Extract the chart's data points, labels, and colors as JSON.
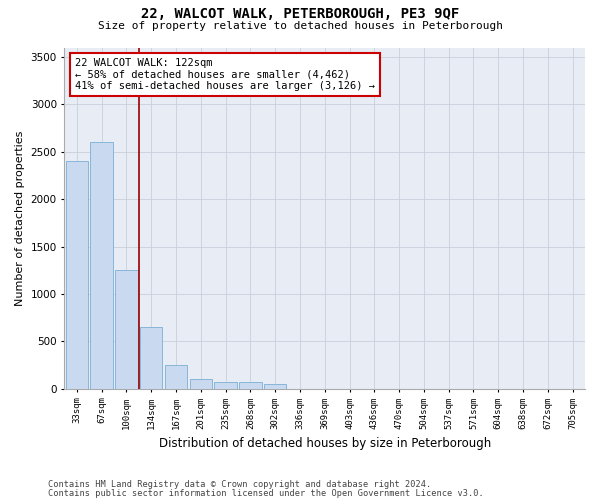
{
  "title1": "22, WALCOT WALK, PETERBOROUGH, PE3 9QF",
  "title2": "Size of property relative to detached houses in Peterborough",
  "xlabel": "Distribution of detached houses by size in Peterborough",
  "ylabel": "Number of detached properties",
  "categories": [
    "33sqm",
    "67sqm",
    "100sqm",
    "134sqm",
    "167sqm",
    "201sqm",
    "235sqm",
    "268sqm",
    "302sqm",
    "336sqm",
    "369sqm",
    "403sqm",
    "436sqm",
    "470sqm",
    "504sqm",
    "537sqm",
    "571sqm",
    "604sqm",
    "638sqm",
    "672sqm",
    "705sqm"
  ],
  "values": [
    2400,
    2600,
    1250,
    650,
    250,
    100,
    75,
    75,
    50,
    0,
    0,
    0,
    0,
    0,
    0,
    0,
    0,
    0,
    0,
    0,
    0
  ],
  "bar_color": "#c8d9f0",
  "bar_edge_color": "#7bafd4",
  "vline_x": 2.5,
  "vline_color": "#990000",
  "annotation_text": "22 WALCOT WALK: 122sqm\n← 58% of detached houses are smaller (4,462)\n41% of semi-detached houses are larger (3,126) →",
  "annotation_box_color": "white",
  "annotation_box_edge": "#cc0000",
  "ylim": [
    0,
    3600
  ],
  "yticks": [
    0,
    500,
    1000,
    1500,
    2000,
    2500,
    3000,
    3500
  ],
  "grid_color": "#c8d0dc",
  "bg_color": "#e8edf5",
  "footer1": "Contains HM Land Registry data © Crown copyright and database right 2024.",
  "footer2": "Contains public sector information licensed under the Open Government Licence v3.0."
}
